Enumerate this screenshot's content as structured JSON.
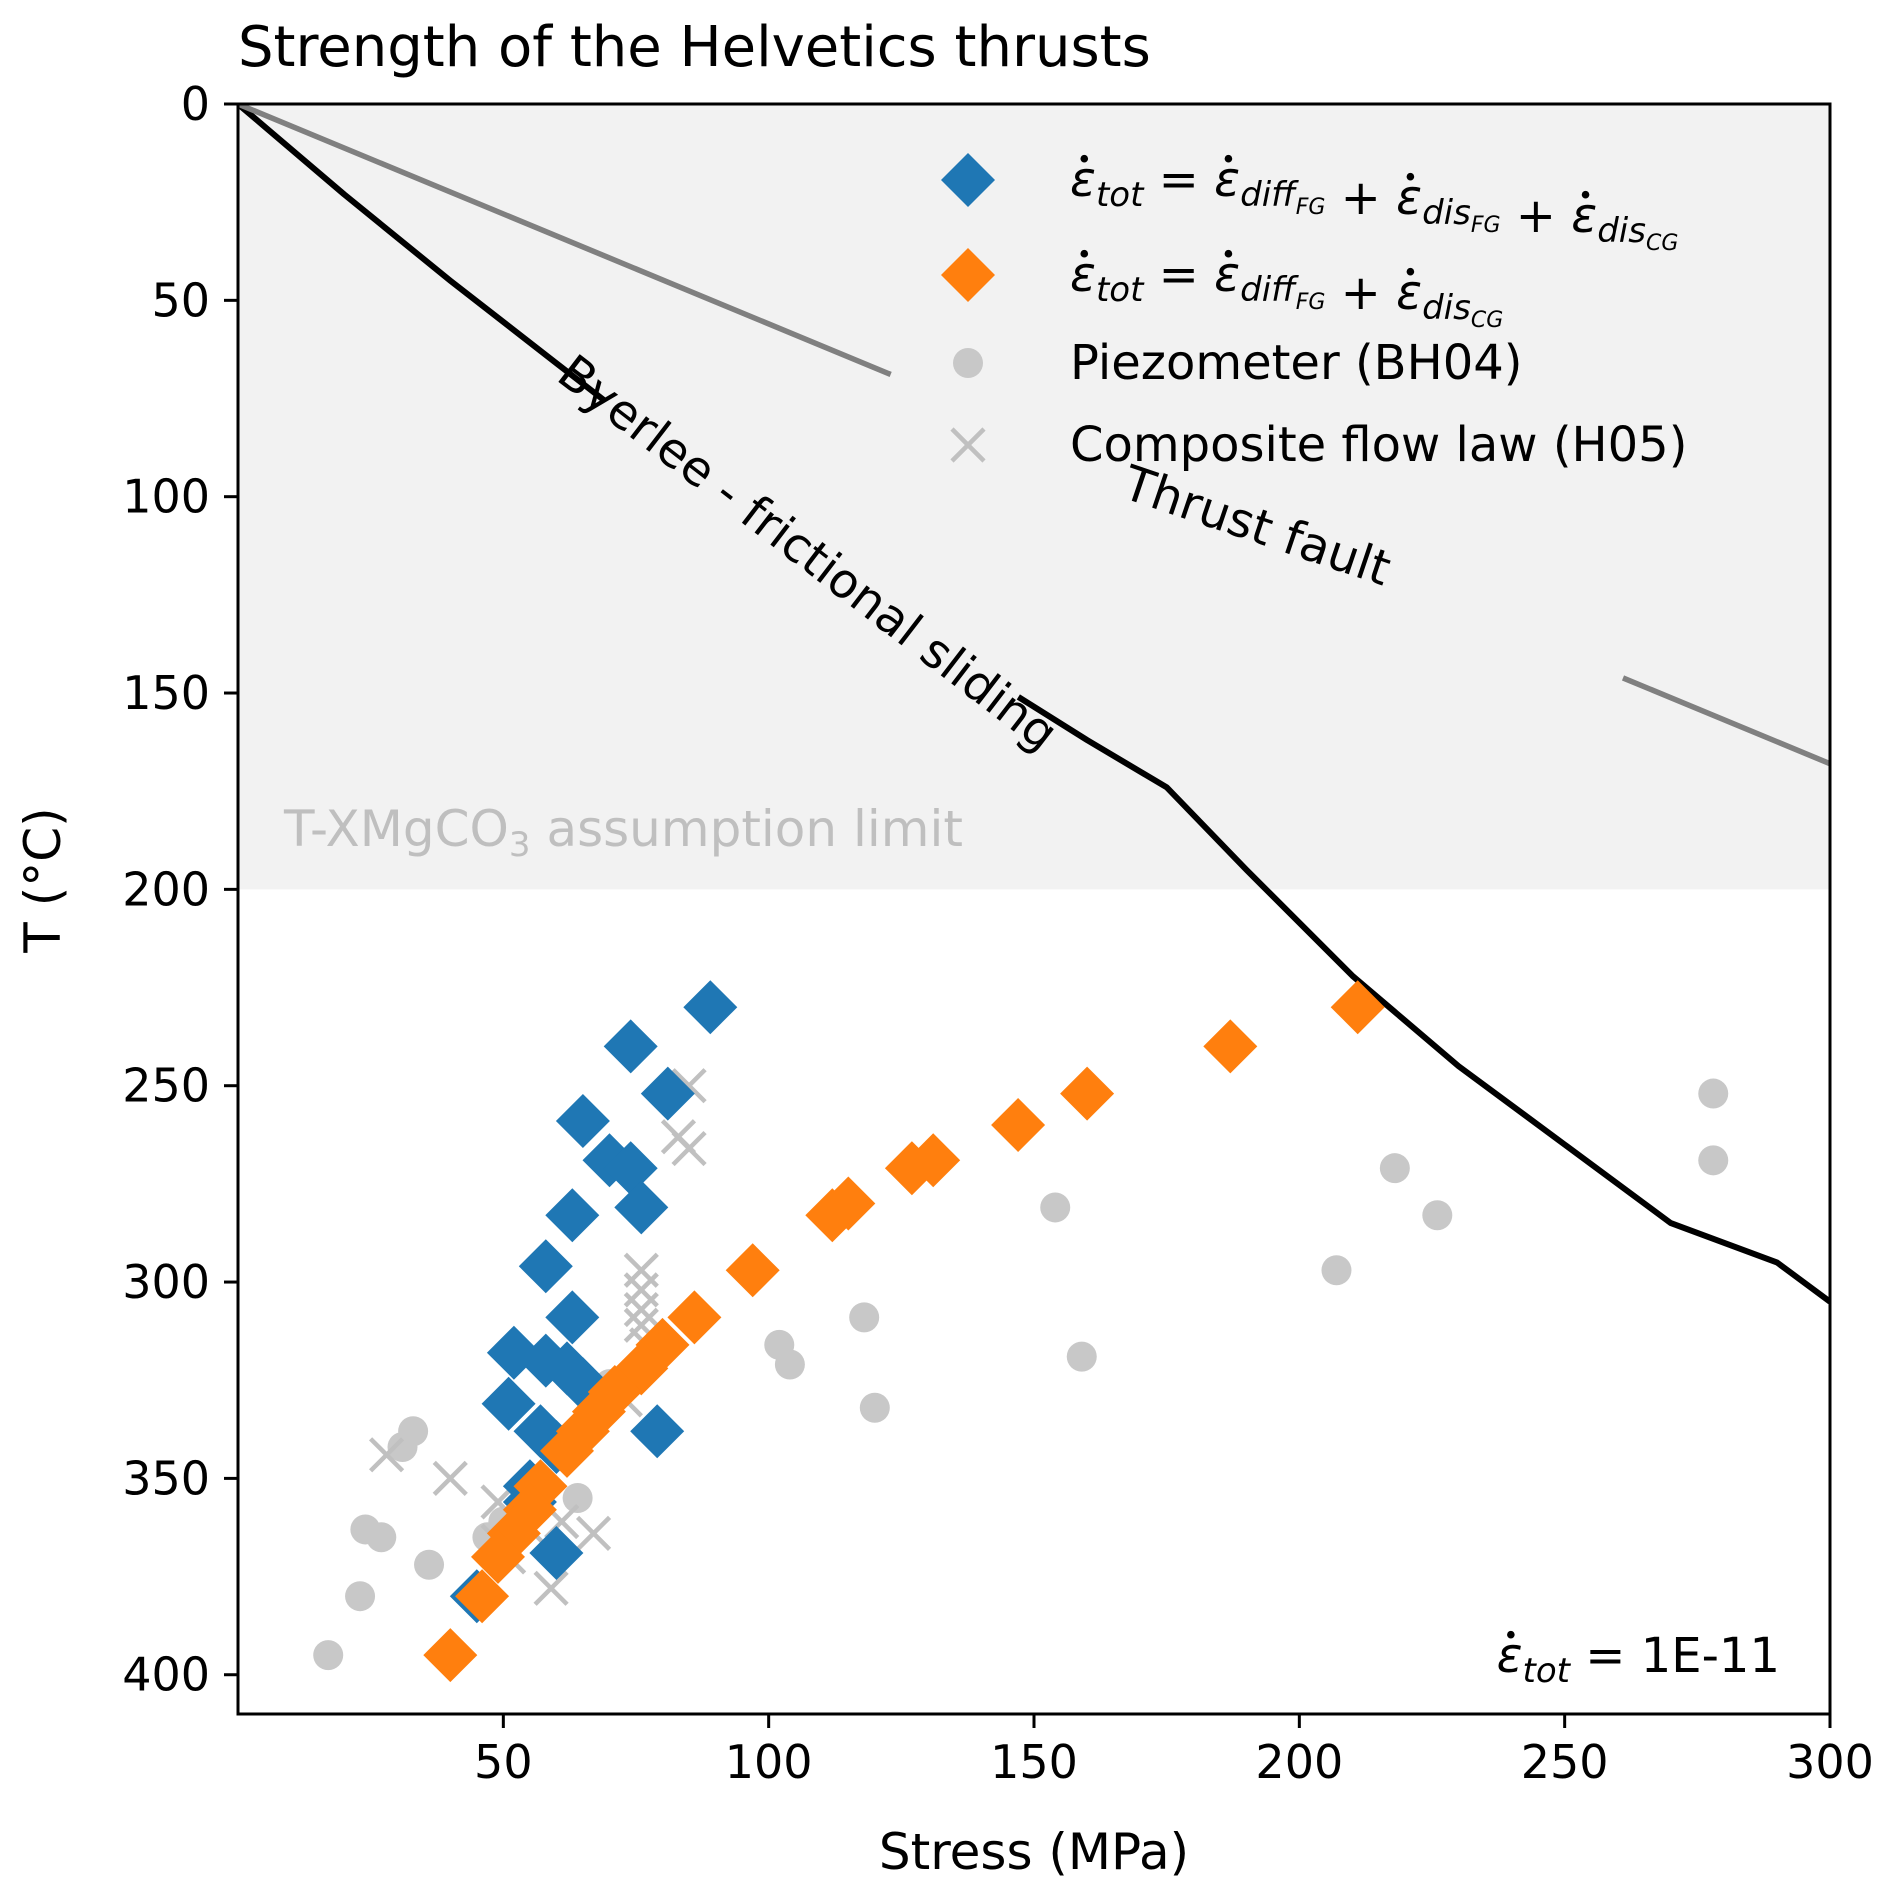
{
  "chart_data": {
    "type": "scatter",
    "title": "Strength of the Helvetics thrusts",
    "xlabel": "Stress (MPa)",
    "ylabel": "T (°C)",
    "xlim": [
      0,
      300
    ],
    "ylim": [
      410,
      0
    ],
    "y_inverted": true,
    "xticks": [
      50,
      100,
      150,
      200,
      250,
      300
    ],
    "yticks": [
      0,
      50,
      100,
      150,
      200,
      250,
      300,
      350,
      400
    ],
    "grid": false,
    "legend_position": "top-right",
    "shaded_region": {
      "y_from": 0,
      "y_to": 200,
      "color": "#f2f2f2",
      "label_prefix": "T-XMgCO",
      "label_sub": "3",
      "label_suffix": " assumption limit"
    },
    "annotation": {
      "eps": "ε",
      "sub": "tot",
      "rest": " = 1E-11"
    },
    "colors": {
      "blue": "#1f77b4",
      "orange": "#ff7f0e",
      "piezometer": "#c8c8c8",
      "composite": "#c0c0c0",
      "byerlee": "#000000",
      "thrust": "#808080",
      "shade_text": "#bfbfbf"
    },
    "lines": [
      {
        "name": "Byerlee - frictional sliding",
        "color": "#000000",
        "x": [
          0,
          20,
          40,
          60,
          80,
          100,
          120,
          140,
          160,
          175,
          190,
          210,
          230,
          250,
          270,
          290,
          300
        ],
        "y": [
          0,
          23,
          45,
          66,
          87,
          107,
          127,
          145,
          162,
          174,
          195,
          222,
          245,
          265,
          285,
          295,
          305
        ]
      },
      {
        "name": "Thrust fault",
        "color": "#808080",
        "x": [
          0,
          300
        ],
        "y": [
          0,
          168
        ]
      }
    ],
    "series": [
      {
        "name_parts": {
          "lhs": "tot",
          "terms": [
            {
              "main": "diff",
              "sub": "FG"
            },
            {
              "main": "dis",
              "sub": "FG"
            },
            {
              "main": "dis",
              "sub": "CG"
            }
          ]
        },
        "marker": "diamond",
        "color": "#1f77b4",
        "points": [
          {
            "x": 89,
            "y": 230
          },
          {
            "x": 74,
            "y": 240
          },
          {
            "x": 81,
            "y": 252
          },
          {
            "x": 65,
            "y": 259
          },
          {
            "x": 70,
            "y": 269
          },
          {
            "x": 74,
            "y": 271
          },
          {
            "x": 76,
            "y": 281
          },
          {
            "x": 63,
            "y": 283
          },
          {
            "x": 58,
            "y": 296
          },
          {
            "x": 63,
            "y": 309
          },
          {
            "x": 52,
            "y": 318
          },
          {
            "x": 58,
            "y": 320
          },
          {
            "x": 62,
            "y": 322
          },
          {
            "x": 65,
            "y": 326
          },
          {
            "x": 51,
            "y": 331
          },
          {
            "x": 57,
            "y": 338
          },
          {
            "x": 79,
            "y": 338
          },
          {
            "x": 60,
            "y": 342
          },
          {
            "x": 55,
            "y": 352
          },
          {
            "x": 55,
            "y": 356
          },
          {
            "x": 60,
            "y": 369
          },
          {
            "x": 45,
            "y": 380
          }
        ]
      },
      {
        "name_parts": {
          "lhs": "tot",
          "terms": [
            {
              "main": "diff",
              "sub": "FG"
            },
            {
              "main": "dis",
              "sub": "CG"
            }
          ]
        },
        "marker": "diamond",
        "color": "#ff7f0e",
        "points": [
          {
            "x": 211,
            "y": 230
          },
          {
            "x": 187,
            "y": 240
          },
          {
            "x": 160,
            "y": 252
          },
          {
            "x": 147,
            "y": 260
          },
          {
            "x": 127,
            "y": 271
          },
          {
            "x": 131,
            "y": 269
          },
          {
            "x": 115,
            "y": 280
          },
          {
            "x": 112,
            "y": 283
          },
          {
            "x": 97,
            "y": 297
          },
          {
            "x": 86,
            "y": 309
          },
          {
            "x": 80,
            "y": 316
          },
          {
            "x": 76,
            "y": 322
          },
          {
            "x": 71,
            "y": 328
          },
          {
            "x": 68,
            "y": 333
          },
          {
            "x": 65,
            "y": 338
          },
          {
            "x": 62,
            "y": 343
          },
          {
            "x": 57,
            "y": 352
          },
          {
            "x": 55,
            "y": 358
          },
          {
            "x": 52,
            "y": 364
          },
          {
            "x": 49,
            "y": 370
          },
          {
            "x": 46,
            "y": 380
          },
          {
            "x": 40,
            "y": 395
          }
        ]
      },
      {
        "name": "Piezometer (BH04)",
        "marker": "circle",
        "color": "#c8c8c8",
        "points": [
          {
            "x": 278,
            "y": 252
          },
          {
            "x": 278,
            "y": 269
          },
          {
            "x": 218,
            "y": 271
          },
          {
            "x": 226,
            "y": 283
          },
          {
            "x": 154,
            "y": 281
          },
          {
            "x": 207,
            "y": 297
          },
          {
            "x": 118,
            "y": 309
          },
          {
            "x": 159,
            "y": 319
          },
          {
            "x": 102,
            "y": 316
          },
          {
            "x": 104,
            "y": 321
          },
          {
            "x": 120,
            "y": 332
          },
          {
            "x": 70,
            "y": 326
          },
          {
            "x": 78,
            "y": 338
          },
          {
            "x": 33,
            "y": 338
          },
          {
            "x": 31,
            "y": 342
          },
          {
            "x": 64,
            "y": 355
          },
          {
            "x": 55,
            "y": 359
          },
          {
            "x": 50,
            "y": 361
          },
          {
            "x": 47,
            "y": 365
          },
          {
            "x": 24,
            "y": 363
          },
          {
            "x": 27,
            "y": 365
          },
          {
            "x": 36,
            "y": 372
          },
          {
            "x": 23,
            "y": 380
          },
          {
            "x": 17,
            "y": 395
          }
        ]
      },
      {
        "name": "Composite flow law (H05)",
        "marker": "x",
        "color": "#c0c0c0",
        "points": [
          {
            "x": 85,
            "y": 250
          },
          {
            "x": 83,
            "y": 263
          },
          {
            "x": 85,
            "y": 266
          },
          {
            "x": 76,
            "y": 297
          },
          {
            "x": 76,
            "y": 302
          },
          {
            "x": 76,
            "y": 307
          },
          {
            "x": 76,
            "y": 311
          },
          {
            "x": 77,
            "y": 316
          },
          {
            "x": 73,
            "y": 330
          },
          {
            "x": 28,
            "y": 344
          },
          {
            "x": 40,
            "y": 350
          },
          {
            "x": 49,
            "y": 356
          },
          {
            "x": 49,
            "y": 366
          },
          {
            "x": 51,
            "y": 370
          },
          {
            "x": 55,
            "y": 363
          },
          {
            "x": 61,
            "y": 361
          },
          {
            "x": 67,
            "y": 364
          },
          {
            "x": 59,
            "y": 378
          }
        ]
      }
    ]
  }
}
